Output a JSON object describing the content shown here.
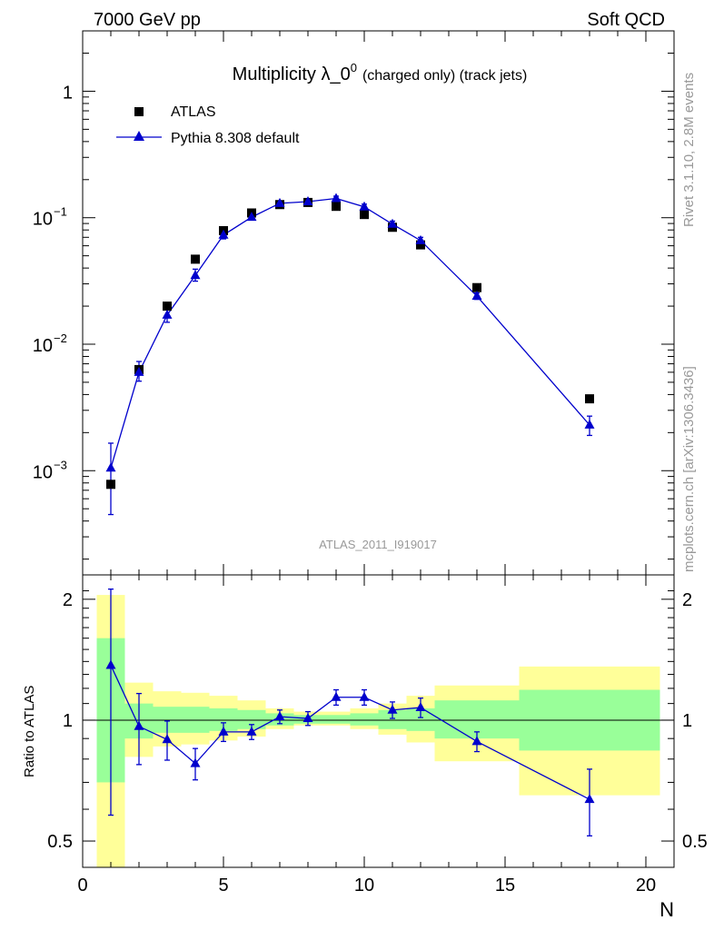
{
  "header": {
    "left": "7000 GeV pp",
    "right": "Soft QCD"
  },
  "side_labels": {
    "rivet": "Rivet 3.1.10,  2.8M events",
    "source": "mcplots.cern.ch [arXiv:1306.3436]"
  },
  "analysis_id": "ATLAS_2011_I919017",
  "colors": {
    "data": "#000000",
    "mc": "#0000cc",
    "band_inner": "#99ff99",
    "band_outer": "#ffff99"
  },
  "chart_data": [
    {
      "type": "scatter",
      "title": "Multiplicity λ_0⁰ (charged only) (track jets)",
      "title_main": "Multiplicity λ_0",
      "title_sup": "0",
      "title_note": "(charged only) (track jets)",
      "xlabel": "",
      "ylabel": "",
      "yscale": "log",
      "xlim": [
        0,
        21
      ],
      "ylim": [
        0.00015,
        3.0
      ],
      "y_ticks": [
        {
          "v": 1,
          "label": "1"
        },
        {
          "v": 0.1,
          "label": "10",
          "exp": "−1"
        },
        {
          "v": 0.01,
          "label": "10",
          "exp": "−2"
        },
        {
          "v": 0.001,
          "label": "10",
          "exp": "−3"
        }
      ],
      "legend_position": "top-left",
      "series": [
        {
          "name": "ATLAS",
          "marker": "square",
          "x": [
            1,
            2,
            3,
            4,
            5,
            6,
            7,
            8,
            9,
            10,
            11,
            12,
            14,
            18
          ],
          "y": [
            0.00078,
            0.0063,
            0.02,
            0.047,
            0.079,
            0.109,
            0.127,
            0.132,
            0.123,
            0.106,
            0.084,
            0.061,
            0.028,
            0.0037
          ]
        },
        {
          "name": "Pythia 8.308 default",
          "marker": "triangle",
          "x": [
            1,
            2,
            3,
            4,
            5,
            6,
            7,
            8,
            9,
            10,
            11,
            12,
            14,
            18
          ],
          "y": [
            0.00105,
            0.006,
            0.017,
            0.035,
            0.073,
            0.101,
            0.13,
            0.134,
            0.142,
            0.122,
            0.089,
            0.066,
            0.024,
            0.0023
          ],
          "err_lo": [
            0.0006,
            0.0009,
            0.0021,
            0.0035,
            0.005,
            0.005,
            0.005,
            0.005,
            0.006,
            0.006,
            0.005,
            0.004,
            0.0014,
            0.0004
          ],
          "err_hi": [
            0.0006,
            0.0013,
            0.0024,
            0.0042,
            0.005,
            0.005,
            0.005,
            0.005,
            0.006,
            0.006,
            0.005,
            0.004,
            0.0014,
            0.0004
          ]
        }
      ]
    },
    {
      "type": "scatter",
      "title": "",
      "xlabel": "N",
      "ylabel": "Ratio to ATLAS",
      "yscale": "log",
      "xlim": [
        0,
        21
      ],
      "ylim": [
        0.43,
        2.3
      ],
      "x_ticks": [
        0,
        5,
        10,
        15,
        20
      ],
      "y_ticks": [
        {
          "v": 0.5,
          "label": "0.5"
        },
        {
          "v": 1,
          "label": "1"
        },
        {
          "v": 2,
          "label": "2"
        }
      ],
      "bands": {
        "x_lo": [
          0.5,
          1.5,
          2.5,
          3.5,
          4.5,
          5.5,
          6.5,
          7.5,
          8.5,
          9.5,
          10.5,
          11.5,
          12.5,
          15.5
        ],
        "x_hi": [
          1.5,
          2.5,
          3.5,
          4.5,
          5.5,
          6.5,
          7.5,
          8.5,
          9.5,
          10.5,
          11.5,
          12.5,
          15.5,
          20.5
        ],
        "inner_lo": [
          0.7,
          0.9,
          0.93,
          0.93,
          0.94,
          0.95,
          0.97,
          0.98,
          0.98,
          0.97,
          0.95,
          0.94,
          0.9,
          0.84
        ],
        "inner_hi": [
          1.6,
          1.1,
          1.08,
          1.08,
          1.07,
          1.06,
          1.04,
          1.03,
          1.03,
          1.04,
          1.06,
          1.07,
          1.12,
          1.19
        ],
        "outer_lo": [
          0.43,
          0.81,
          0.86,
          0.87,
          0.89,
          0.91,
          0.95,
          0.97,
          0.97,
          0.95,
          0.92,
          0.88,
          0.79,
          0.65
        ],
        "outer_hi": [
          2.05,
          1.24,
          1.18,
          1.17,
          1.15,
          1.12,
          1.07,
          1.05,
          1.05,
          1.07,
          1.1,
          1.15,
          1.22,
          1.36
        ]
      },
      "series": [
        {
          "name": "Pythia 8.308 default",
          "marker": "triangle",
          "x": [
            1,
            2,
            3,
            4,
            5,
            6,
            7,
            8,
            9,
            10,
            11,
            12,
            14,
            18
          ],
          "y": [
            1.37,
            0.965,
            0.895,
            0.78,
            0.935,
            0.935,
            1.02,
            1.01,
            1.14,
            1.14,
            1.06,
            1.075,
            0.885,
            0.635
          ],
          "err_lo": [
            0.79,
            0.19,
            0.1,
            0.07,
            0.05,
            0.04,
            0.04,
            0.04,
            0.05,
            0.05,
            0.05,
            0.06,
            0.05,
            0.12
          ],
          "err_hi": [
            0.75,
            0.2,
            0.1,
            0.07,
            0.05,
            0.04,
            0.04,
            0.04,
            0.05,
            0.05,
            0.05,
            0.06,
            0.05,
            0.12
          ]
        }
      ]
    }
  ]
}
